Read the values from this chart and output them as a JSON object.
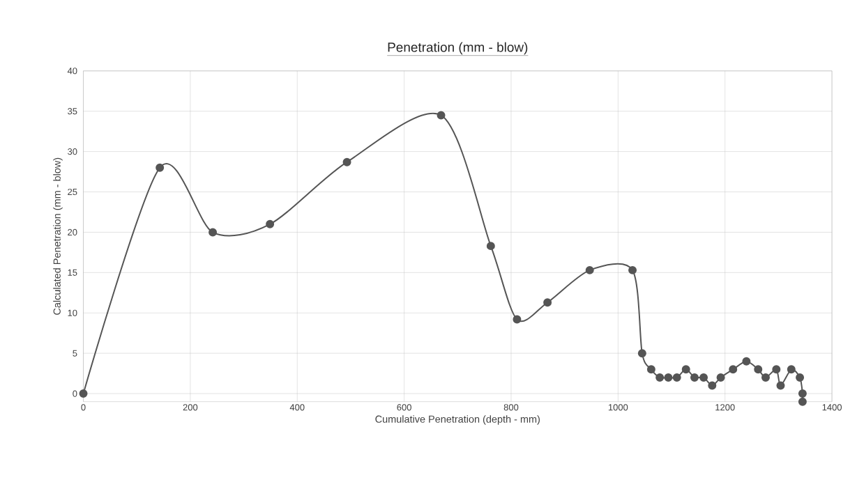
{
  "chart_data": {
    "type": "line",
    "title": "Penetration (mm - blow)",
    "xlabel": "Cumulative Penetration (depth - mm)",
    "ylabel": "Calculated Penetration (mm - blow)",
    "x": [
      0,
      143,
      242,
      349,
      493,
      669,
      762,
      811,
      868,
      947,
      1027,
      1045,
      1062,
      1078,
      1094,
      1110,
      1127,
      1143,
      1160,
      1176,
      1192,
      1215,
      1240,
      1262,
      1276,
      1296,
      1304,
      1324,
      1340,
      1345,
      1345
    ],
    "values": [
      0,
      28,
      20,
      21,
      28.7,
      34.5,
      18.3,
      9.2,
      11.3,
      15.3,
      15.3,
      5,
      3,
      2,
      2,
      2,
      3,
      2,
      2,
      1,
      2,
      3,
      4,
      3,
      2,
      3,
      1,
      3,
      2,
      0,
      -1
    ],
    "color": "#555555",
    "marker": "circle",
    "line_style": "solid",
    "grid": true,
    "xlim": [
      0,
      1400
    ],
    "xticks": [
      0,
      200,
      400,
      600,
      800,
      1000,
      1200,
      1400
    ],
    "ylim": [
      -1,
      40
    ],
    "yticks": [
      0,
      5,
      10,
      15,
      20,
      25,
      30,
      35,
      40
    ]
  }
}
